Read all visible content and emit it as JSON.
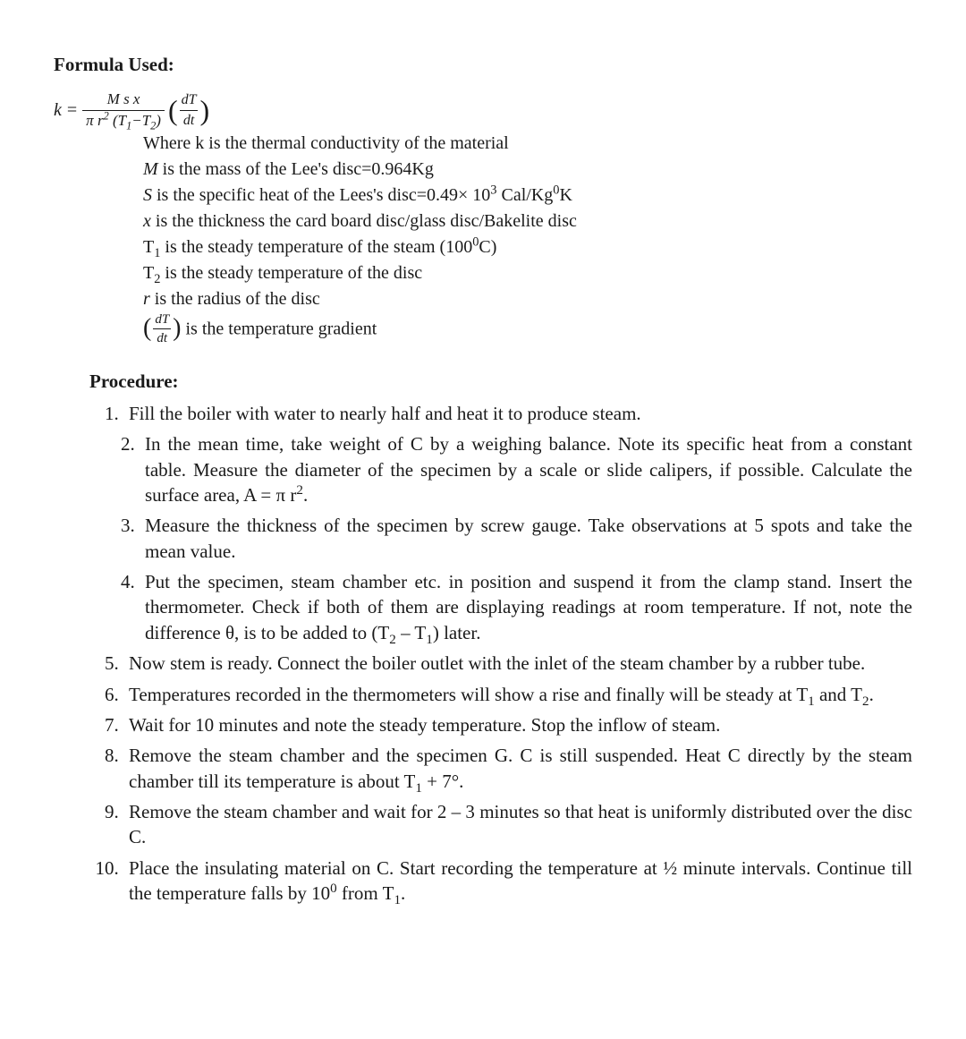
{
  "colors": {
    "text": "#1a1a1a",
    "background": "#ffffff",
    "rule": "#1a1a1a"
  },
  "typography": {
    "body_font": "Times New Roman",
    "body_size_pt": 16,
    "title_weight": "bold"
  },
  "formula_section": {
    "title": "Formula Used:",
    "lhs": "k",
    "equals": "=",
    "numerator_html": "<i>M s x</i>",
    "denominator_html": "π <i>r</i><sup>2</sup> (<i>T</i><sub>1</sub>−<i>T</i><sub>2</sub>)",
    "grad_num": "dT",
    "grad_den": "dt",
    "definitions": [
      "Where k is the  thermal conductivity of the material",
      "<i>M</i> is the mass of the Lee's disc=0.964Kg",
      "<i>S</i> is the specific heat of the Lees's disc=0.49× 10<sup>3</sup> Cal/Kg<sup>0</sup>K",
      "<i>x</i> is the thickness the card board disc/glass disc/Bakelite disc",
      "T<sub>1</sub> is the steady temperature of the steam (100<sup>0</sup>C)",
      "T<sub>2</sub> is the steady temperature of the disc",
      "<i>r</i> is the radius of the disc",
      "__GRADIENT__ is the temperature gradient"
    ]
  },
  "procedure": {
    "title": "Procedure:",
    "items": [
      {
        "html": "Fill the boiler with water to nearly half and heat it to produce steam.",
        "indent": false
      },
      {
        "html": "In the mean time, take weight of C by a weighing balance. Note its specific heat from a constant table. Measure the diameter of the specimen by a scale or slide calipers, if possible. Calculate the surface area, A = π r<sup>2</sup>.",
        "indent": true
      },
      {
        "html": "Measure the thickness of the specimen by screw gauge. Take observations at 5 spots and take the mean value.",
        "indent": true
      },
      {
        "html": "Put the specimen, steam chamber etc. in position and suspend it from the clamp stand. Insert the thermometer. Check if both of them are displaying readings at room temperature. If not, note the difference θ, is to be added to (T<sub>2</sub> – T<sub>1</sub>) later.",
        "indent": true
      },
      {
        "html": "Now stem is ready. Connect the boiler outlet with the inlet of the steam chamber by a rubber tube.",
        "indent": false
      },
      {
        "html": "Temperatures recorded in the thermometers will show a rise and finally will be steady at T<sub>1</sub> and T<sub>2</sub>.",
        "indent": false
      },
      {
        "html": "Wait for 10 minutes and note the steady temperature. Stop the inflow of steam.",
        "indent": false
      },
      {
        "html": "Remove the steam chamber and the specimen G. C is still suspended. Heat C directly by the steam chamber till its temperature is about T<sub>1</sub> + 7°.",
        "indent": false
      },
      {
        "html": "Remove the steam chamber and wait for 2 – 3 minutes so that heat is uniformly distributed over the disc C.",
        "indent": false
      },
      {
        "html": "Place the insulating material on C. Start recording the temperature at ½ minute intervals. Continue till the temperature falls by 10<sup>0</sup> from T<sub>1</sub>.",
        "indent": false
      }
    ]
  }
}
